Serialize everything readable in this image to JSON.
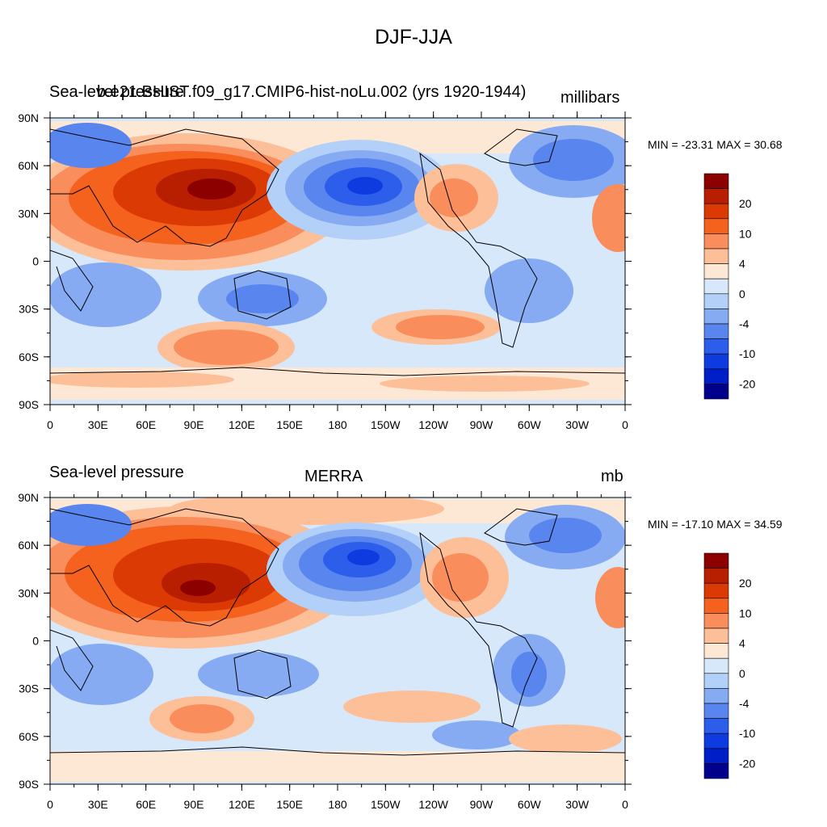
{
  "title": "DJF-JJA",
  "colors": {
    "scale": [
      "#8c0000",
      "#b81e00",
      "#dc3a04",
      "#f4621e",
      "#f98e5c",
      "#fdbf98",
      "#fde8d6",
      "#d8e8fb",
      "#b2d0f8",
      "#86abf2",
      "#5885ee",
      "#2d5eeb",
      "#0e3be0",
      "#001ec8",
      "#00008c"
    ]
  },
  "panels": [
    {
      "left_title": "Sea-level pressure",
      "center_title": "b.e21.BHIST.f09_g17.CMIP6-hist-noLu.002 (yrs 1920-1944)",
      "units": "millibars",
      "stats": "MIN = -23.31 MAX =  30.68",
      "colorbar_labels": [
        "20",
        "10",
        "4",
        "0",
        "-4",
        "-10",
        "-20"
      ],
      "lat_labels": [
        "90N",
        "60N",
        "30N",
        "0",
        "30S",
        "60S",
        "90S"
      ],
      "lon_labels": [
        "0",
        "30E",
        "60E",
        "90E",
        "120E",
        "150E",
        "180",
        "150W",
        "120W",
        "90W",
        "60W",
        "30W",
        "0"
      ]
    },
    {
      "left_title": "Sea-level pressure",
      "center_title": "MERRA",
      "units": "mb",
      "stats": "MIN = -17.10 MAX =  34.59",
      "colorbar_labels": [
        "20",
        "10",
        "4",
        "0",
        "-4",
        "-10",
        "-20"
      ],
      "lat_labels": [
        "90N",
        "60N",
        "30N",
        "0",
        "30S",
        "60S",
        "90S"
      ],
      "lon_labels": [
        "0",
        "30E",
        "60E",
        "90E",
        "120E",
        "150E",
        "180",
        "150W",
        "120W",
        "90W",
        "60W",
        "30W",
        "0"
      ]
    }
  ]
}
